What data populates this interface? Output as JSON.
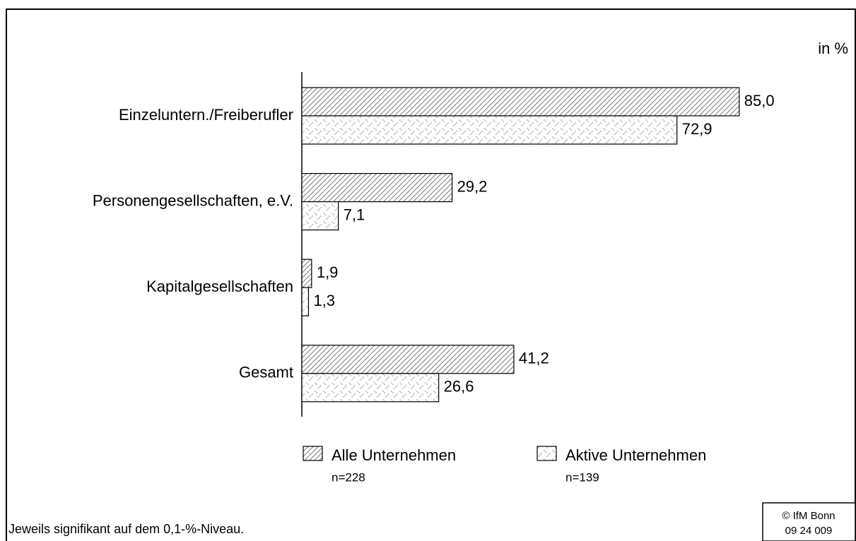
{
  "chart_data": {
    "type": "hbar",
    "unit_label": "in %",
    "categories": [
      "Einzeluntern./Freiberufler",
      "Personengesellschaften, e.V.",
      "Kapitalgesellschaften",
      "Gesamt"
    ],
    "series": [
      {
        "name": "Alle Unternehmen",
        "n": "n=228",
        "pattern": "hatch",
        "color": "#000000",
        "values": [
          85.0,
          29.2,
          1.9,
          41.2
        ],
        "value_labels": [
          "85,0",
          "29,2",
          "1,9",
          "41,2"
        ]
      },
      {
        "name": "Aktive Unternehmen",
        "n": "n=139",
        "pattern": "dots",
        "color": "#000000",
        "values": [
          72.9,
          7.1,
          1.3,
          26.6
        ],
        "value_labels": [
          "72,9",
          "7,1",
          "1,3",
          "26,6"
        ]
      }
    ],
    "footnote": "Jeweils signifikant auf dem 0,1-%-Niveau.",
    "source": [
      "© IfM Bonn",
      "09 24 009"
    ]
  }
}
